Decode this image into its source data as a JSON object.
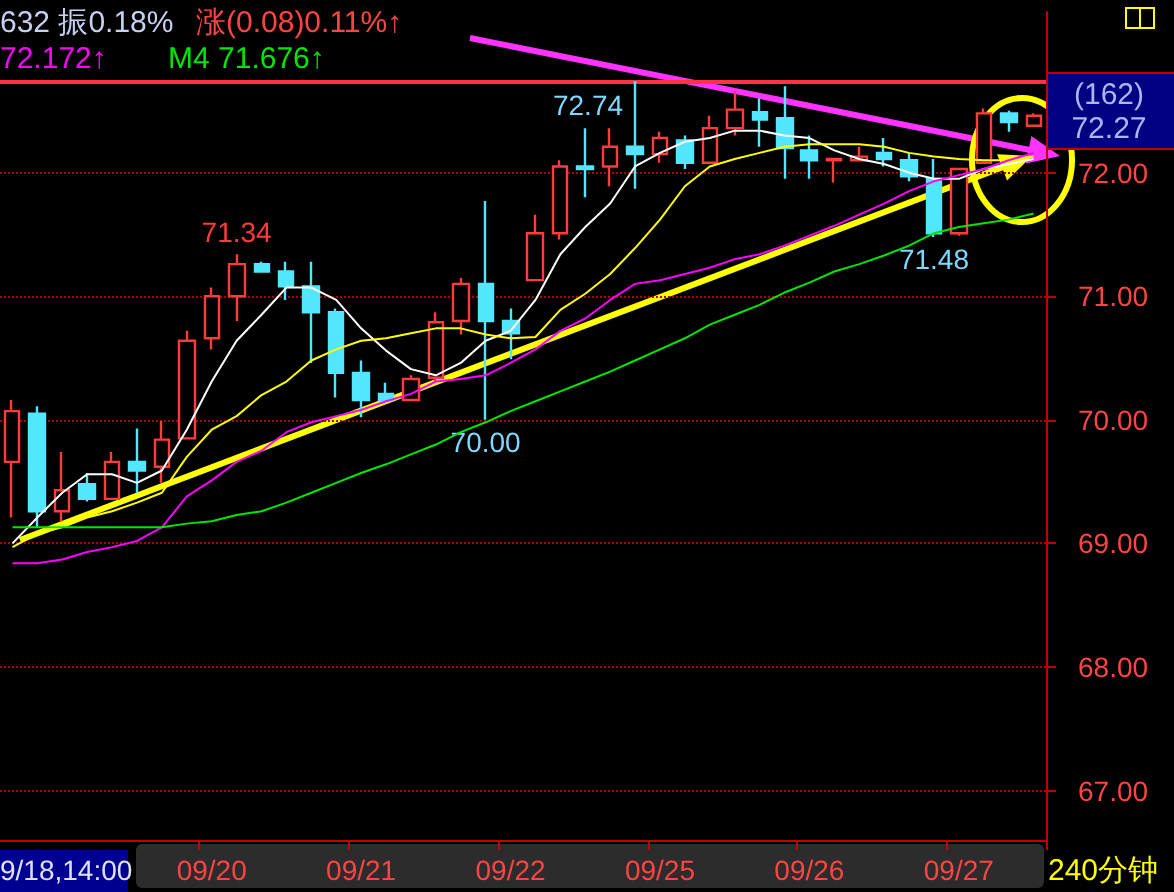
{
  "chart_data": {
    "type": "candlestick",
    "categories": [
      null,
      null,
      null,
      null,
      null,
      null,
      null,
      null,
      "09/20",
      null,
      null,
      null,
      null,
      null,
      "09/21",
      null,
      null,
      null,
      null,
      null,
      "09/22",
      null,
      null,
      null,
      null,
      null,
      "09/25",
      null,
      null,
      null,
      null,
      null,
      "09/26",
      null,
      null,
      null,
      null,
      null,
      "09/27",
      null,
      null,
      null
    ],
    "ohlc": [
      [
        69.66,
        70.16,
        69.21,
        70.07
      ],
      [
        70.05,
        70.11,
        69.13,
        69.26
      ],
      [
        69.26,
        69.74,
        69.18,
        69.43
      ],
      [
        69.48,
        69.57,
        69.34,
        69.36
      ],
      [
        69.36,
        69.74,
        69.36,
        69.66
      ],
      [
        69.66,
        69.93,
        69.41,
        69.59
      ],
      [
        69.62,
        69.99,
        69.49,
        69.84
      ],
      [
        69.85,
        70.72,
        69.85,
        70.64
      ],
      [
        70.66,
        71.07,
        70.57,
        71.0
      ],
      [
        71.0,
        71.34,
        70.8,
        71.26
      ],
      [
        71.26,
        71.28,
        71.19,
        71.2
      ],
      [
        71.2,
        71.28,
        70.97,
        71.08
      ],
      [
        71.08,
        71.28,
        70.46,
        70.87
      ],
      [
        70.87,
        70.9,
        70.18,
        70.38
      ],
      [
        70.38,
        70.48,
        70.02,
        70.16
      ],
      [
        70.21,
        70.3,
        70.15,
        70.16
      ],
      [
        70.16,
        70.36,
        70.15,
        70.33
      ],
      [
        70.34,
        70.87,
        70.31,
        70.79
      ],
      [
        70.8,
        71.15,
        70.69,
        71.1
      ],
      [
        71.1,
        71.77,
        70.0,
        70.8
      ],
      [
        70.8,
        70.9,
        70.49,
        70.7
      ],
      [
        71.13,
        71.66,
        71.13,
        71.51
      ],
      [
        71.51,
        72.1,
        71.46,
        72.05
      ],
      [
        72.05,
        72.36,
        71.8,
        72.03
      ],
      [
        72.05,
        72.36,
        71.89,
        72.21
      ],
      [
        72.21,
        72.74,
        71.87,
        72.15
      ],
      [
        72.15,
        72.33,
        72.08,
        72.28
      ],
      [
        72.26,
        72.3,
        72.03,
        72.08
      ],
      [
        72.08,
        72.46,
        72.08,
        72.36
      ],
      [
        72.36,
        72.66,
        72.3,
        72.51
      ],
      [
        72.49,
        72.6,
        72.21,
        72.43
      ],
      [
        72.44,
        72.7,
        71.95,
        72.2
      ],
      [
        72.18,
        72.3,
        71.95,
        72.1
      ],
      [
        72.1,
        72.11,
        71.92,
        72.11
      ],
      [
        72.1,
        72.21,
        72.1,
        72.13
      ],
      [
        72.16,
        72.28,
        72.05,
        72.11
      ],
      [
        72.1,
        72.16,
        71.93,
        71.97
      ],
      [
        71.95,
        72.11,
        71.48,
        71.51
      ],
      [
        71.51,
        72.03,
        71.49,
        72.03
      ],
      [
        72.08,
        72.52,
        72.08,
        72.48
      ],
      [
        72.48,
        72.5,
        72.33,
        72.41
      ],
      [
        72.38,
        72.48,
        72.38,
        72.46
      ]
    ],
    "colors": [
      "#ff3b3b",
      "#54e6ff",
      "#ff3b3b",
      "#54e6ff",
      "#ff3b3b",
      "#54e6ff",
      "#ff3b3b",
      "#ff3b3b",
      "#ff3b3b",
      "#ff3b3b",
      "#54e6ff",
      "#54e6ff",
      "#54e6ff",
      "#54e6ff",
      "#54e6ff",
      "#54e6ff",
      "#ff3b3b",
      "#ff3b3b",
      "#ff3b3b",
      "#54e6ff",
      "#54e6ff",
      "#ff3b3b",
      "#ff3b3b",
      "#54e6ff",
      "#ff3b3b",
      "#54e6ff",
      "#ff3b3b",
      "#54e6ff",
      "#ff3b3b",
      "#ff3b3b",
      "#54e6ff",
      "#54e6ff",
      "#54e6ff",
      "#ff3b3b",
      "#ff3b3b",
      "#54e6ff",
      "#54e6ff",
      "#54e6ff",
      "#ff3b3b",
      "#ff3b3b",
      "#54e6ff",
      "#ff3b3b"
    ],
    "series": [
      {
        "type": "line",
        "color": "#ffffff",
        "values": [
          69.0,
          69.21,
          69.41,
          69.56,
          69.56,
          69.49,
          69.59,
          69.92,
          70.31,
          70.64,
          70.85,
          71.07,
          71.07,
          70.97,
          70.74,
          70.56,
          70.41,
          70.36,
          70.46,
          70.64,
          70.72,
          70.97,
          71.34,
          71.56,
          71.75,
          72.05,
          72.16,
          72.25,
          72.28,
          72.34,
          72.34,
          72.3,
          72.28,
          72.18,
          72.11,
          72.07,
          72.0,
          71.95,
          71.95,
          72.03,
          72.07,
          72.11
        ]
      },
      {
        "type": "line",
        "color": "#ffff00",
        "values": [
          68.97,
          69.08,
          69.13,
          69.21,
          69.26,
          69.33,
          69.41,
          69.7,
          69.92,
          70.03,
          70.2,
          70.31,
          70.48,
          70.57,
          70.64,
          70.66,
          70.7,
          70.74,
          70.74,
          70.69,
          70.66,
          70.67,
          70.89,
          71.02,
          71.18,
          71.39,
          71.62,
          71.89,
          72.05,
          72.11,
          72.16,
          72.21,
          72.23,
          72.23,
          72.23,
          72.21,
          72.16,
          72.13,
          72.11,
          72.1,
          72.1,
          72.13
        ]
      },
      {
        "type": "line",
        "color": "#ff00ff",
        "values": [
          68.84,
          68.84,
          68.87,
          68.93,
          68.97,
          69.02,
          69.13,
          69.38,
          69.51,
          69.66,
          69.75,
          69.9,
          69.98,
          70.03,
          70.08,
          70.15,
          70.21,
          70.31,
          70.33,
          70.36,
          70.46,
          70.57,
          70.72,
          70.82,
          70.97,
          71.1,
          71.13,
          71.18,
          71.23,
          71.3,
          71.34,
          71.41,
          71.49,
          71.57,
          71.66,
          71.75,
          71.85,
          71.93,
          71.98,
          72.03,
          72.1,
          72.16
        ]
      },
      {
        "type": "line",
        "color": "#00e600",
        "values": [
          69.13,
          69.13,
          69.13,
          69.13,
          69.13,
          69.13,
          69.13,
          69.16,
          69.18,
          69.23,
          69.26,
          69.33,
          69.41,
          69.49,
          69.57,
          69.64,
          69.72,
          69.8,
          69.9,
          69.98,
          70.07,
          70.15,
          70.23,
          70.31,
          70.39,
          70.48,
          70.57,
          70.66,
          70.77,
          70.85,
          70.93,
          71.03,
          71.11,
          71.2,
          71.26,
          71.33,
          71.41,
          71.51,
          71.56,
          71.59,
          71.62,
          71.67
        ]
      }
    ],
    "ylim": [
      66.6,
      73.3
    ],
    "yticks": [
      {
        "value": 67,
        "label": "67.00"
      },
      {
        "value": 68,
        "label": "68.00"
      },
      {
        "value": 69,
        "label": "69.00"
      },
      {
        "value": 70,
        "label": "70.00"
      },
      {
        "value": 71,
        "label": "71.00"
      },
      {
        "value": 72,
        "label": "72.00"
      }
    ],
    "grid": "y",
    "marker": "none",
    "line_style": "solid",
    "ref_lines": [
      {
        "axis": "y",
        "value": 72.74,
        "color": "#ff3344"
      }
    ],
    "annotations": [
      "632 振0.18%",
      "涨(0.08)0.11%↑",
      "72.172↑",
      "M4 71.676↑",
      "(162)",
      "72.27",
      "9/18,14:00",
      "240分钟",
      {
        "text": "71.34",
        "y": 71.34
      },
      {
        "text": "70.00",
        "y": 70.0
      },
      {
        "text": "72.74",
        "y": 72.74
      },
      {
        "text": "71.48",
        "y": 71.48
      }
    ]
  }
}
